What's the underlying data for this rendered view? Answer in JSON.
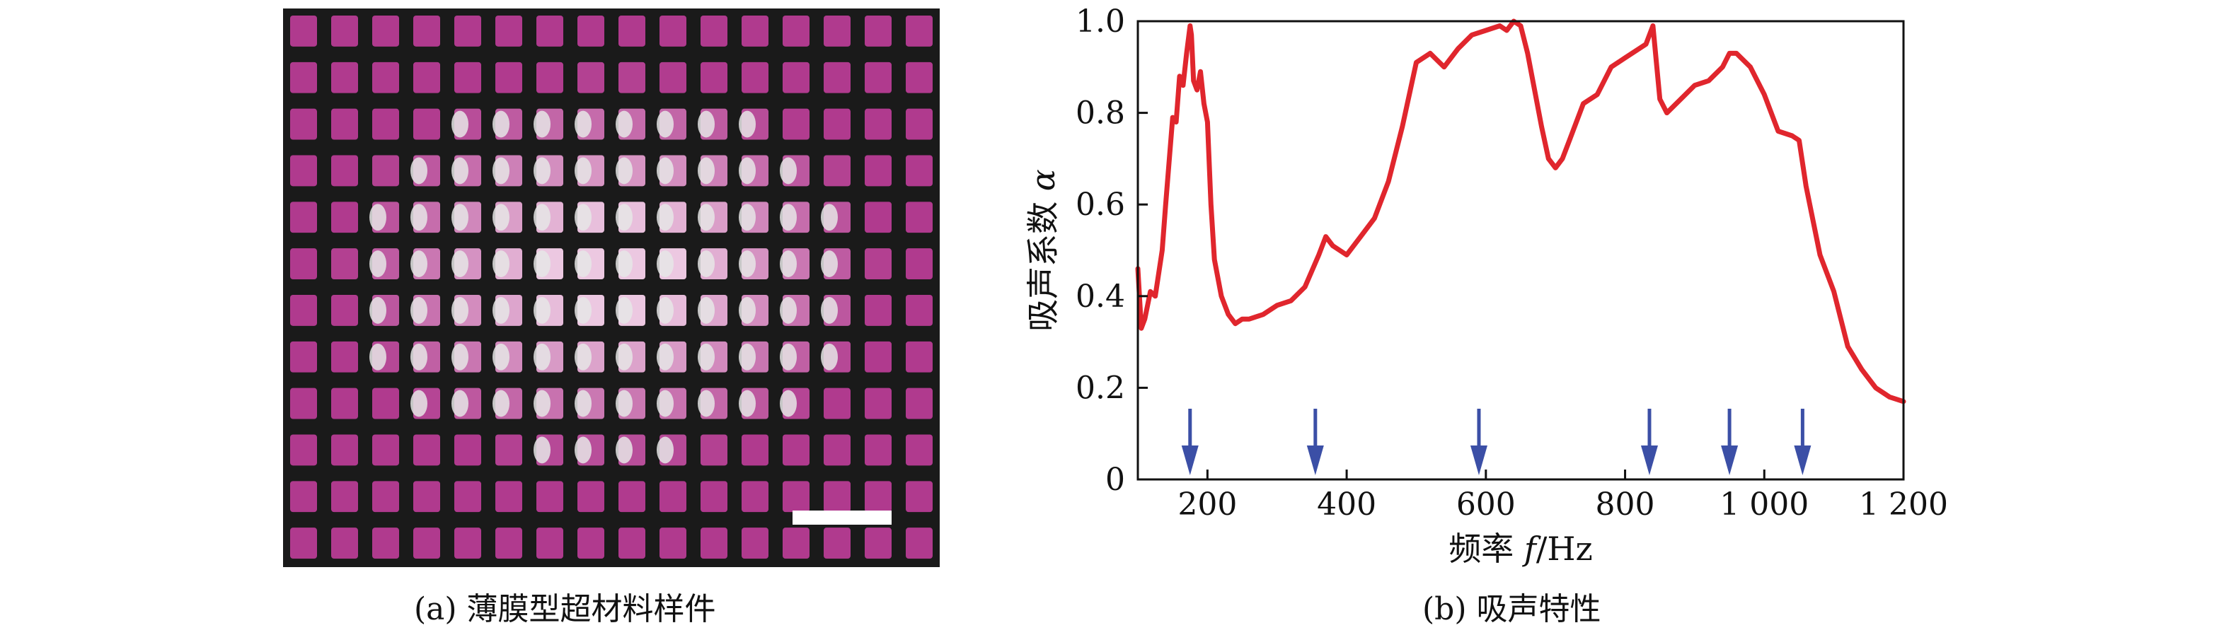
{
  "panel_a": {
    "caption": "(a) 薄膜型超材料样件",
    "grid": {
      "columns": 16,
      "rows": 12,
      "membrane_color": "#b03a8e",
      "frame_color": "#1a1a1a"
    }
  },
  "panel_b": {
    "caption": "(b) 吸声特性"
  },
  "chart_data": {
    "type": "line",
    "xlabel_prefix": "频率 ",
    "xlabel_var": "f",
    "xlabel_unit": "/Hz",
    "ylabel_prefix": "吸声系数 ",
    "ylabel_var": "α",
    "xlim": [
      100,
      1200
    ],
    "ylim": [
      0,
      1.0
    ],
    "x_ticks": [
      200,
      400,
      600,
      800,
      1000,
      1200
    ],
    "x_tick_labels": [
      "200",
      "400",
      "600",
      "800",
      "1 000",
      "1 200"
    ],
    "y_ticks": [
      0,
      0.2,
      0.4,
      0.6,
      0.8,
      1.0
    ],
    "y_tick_labels": [
      "0",
      "0.2",
      "0.4",
      "0.6",
      "0.8",
      "1.0"
    ],
    "line_color": "#e0262d",
    "arrow_color": "#3b4fa6",
    "arrows_x": [
      175,
      355,
      590,
      835,
      950,
      1055
    ],
    "series": [
      {
        "x": [
          100,
          105,
          110,
          118,
          125,
          135,
          140,
          150,
          155,
          160,
          165,
          170,
          175,
          177,
          180,
          185,
          190,
          195,
          200,
          205,
          210,
          220,
          230,
          240,
          250,
          260,
          280,
          300,
          320,
          340,
          360,
          370,
          380,
          400,
          420,
          440,
          460,
          480,
          500,
          520,
          540,
          560,
          580,
          600,
          620,
          630,
          640,
          650,
          660,
          680,
          690,
          700,
          710,
          720,
          740,
          760,
          780,
          800,
          820,
          830,
          840,
          850,
          860,
          880,
          900,
          920,
          940,
          950,
          960,
          980,
          1000,
          1020,
          1040,
          1050,
          1060,
          1080,
          1100,
          1120,
          1140,
          1160,
          1180,
          1200
        ],
        "y": [
          0.46,
          0.33,
          0.35,
          0.41,
          0.4,
          0.5,
          0.6,
          0.79,
          0.78,
          0.88,
          0.86,
          0.93,
          0.99,
          0.97,
          0.87,
          0.85,
          0.89,
          0.82,
          0.78,
          0.6,
          0.48,
          0.4,
          0.36,
          0.34,
          0.35,
          0.35,
          0.36,
          0.38,
          0.39,
          0.42,
          0.49,
          0.53,
          0.51,
          0.49,
          0.53,
          0.57,
          0.65,
          0.77,
          0.91,
          0.93,
          0.9,
          0.94,
          0.97,
          0.98,
          0.99,
          0.98,
          1.0,
          0.99,
          0.93,
          0.77,
          0.7,
          0.68,
          0.7,
          0.74,
          0.82,
          0.84,
          0.9,
          0.92,
          0.94,
          0.95,
          0.99,
          0.83,
          0.8,
          0.83,
          0.86,
          0.87,
          0.9,
          0.93,
          0.93,
          0.9,
          0.84,
          0.76,
          0.75,
          0.74,
          0.64,
          0.49,
          0.41,
          0.29,
          0.24,
          0.2,
          0.18,
          0.17
        ]
      }
    ]
  }
}
